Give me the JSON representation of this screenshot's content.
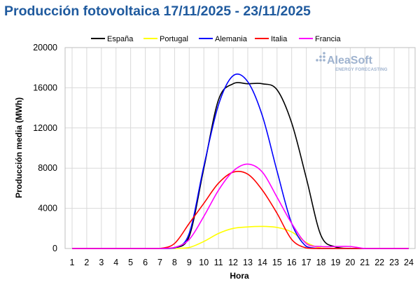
{
  "chart_data": {
    "type": "line",
    "title": "Producción fotovoltaica 17/11/2025 - 23/11/2025",
    "xlabel": "Hora",
    "ylabel": "Producción media (MWh)",
    "x": [
      1,
      2,
      3,
      4,
      5,
      6,
      7,
      8,
      9,
      10,
      11,
      12,
      13,
      14,
      15,
      16,
      17,
      18,
      19,
      20,
      21,
      22,
      23,
      24
    ],
    "xlim": [
      1,
      24
    ],
    "ylim": [
      0,
      20000
    ],
    "yticks": [
      0,
      4000,
      8000,
      12000,
      16000,
      20000
    ],
    "grid": true,
    "legend_position": "top",
    "series": [
      {
        "name": "España",
        "color": "#000000",
        "values": [
          0,
          0,
          0,
          0,
          0,
          0,
          0,
          50,
          1200,
          8000,
          14800,
          16400,
          16400,
          16400,
          15800,
          12500,
          7000,
          1300,
          150,
          0,
          0,
          0,
          0,
          0
        ]
      },
      {
        "name": "Portugal",
        "color": "#ffff00",
        "values": [
          0,
          0,
          0,
          0,
          0,
          0,
          0,
          0,
          100,
          700,
          1500,
          2000,
          2150,
          2200,
          2100,
          1650,
          600,
          50,
          0,
          0,
          0,
          0,
          0,
          0
        ]
      },
      {
        "name": "Alemania",
        "color": "#0000ff",
        "values": [
          0,
          0,
          0,
          0,
          0,
          0,
          0,
          50,
          1500,
          8200,
          14300,
          17200,
          16600,
          13200,
          7700,
          2500,
          200,
          0,
          0,
          0,
          0,
          0,
          0,
          0
        ]
      },
      {
        "name": "Italia",
        "color": "#ff0000",
        "values": [
          0,
          0,
          0,
          0,
          0,
          0,
          0,
          500,
          2500,
          4500,
          6500,
          7600,
          7400,
          5800,
          3500,
          900,
          50,
          0,
          0,
          0,
          0,
          0,
          0,
          0
        ]
      },
      {
        "name": "Francia",
        "color": "#ff00ff",
        "values": [
          0,
          0,
          0,
          0,
          0,
          0,
          0,
          100,
          900,
          3200,
          5800,
          7700,
          8400,
          7600,
          5100,
          2500,
          500,
          200,
          200,
          200,
          0,
          0,
          0,
          0
        ]
      }
    ]
  },
  "logo": {
    "name": "AleaSoft",
    "tagline": "ENERGY FORECASTING"
  }
}
